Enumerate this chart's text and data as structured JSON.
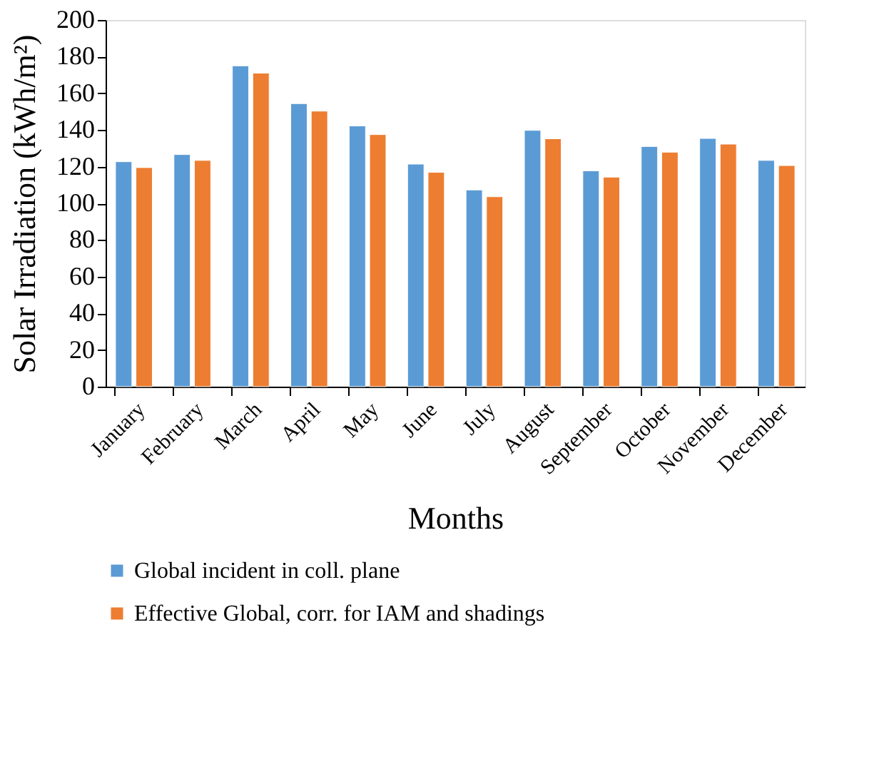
{
  "chart_data": {
    "type": "bar",
    "xlabel": "Months",
    "ylabel": "Solar Irradiation (kWh/m²)",
    "categories": [
      "January",
      "February",
      "March",
      "April",
      "May",
      "June",
      "July",
      "August",
      "September",
      "October",
      "November",
      "December"
    ],
    "series": [
      {
        "name": "Global incident in coll. plane",
        "color": "#5b9bd5",
        "values": [
          122.7,
          126.6,
          175,
          154.4,
          142.2,
          121.4,
          107.3,
          139.8,
          117.7,
          131,
          135.4,
          123.4
        ]
      },
      {
        "name": "Effective Global, corr. for IAM and shadings",
        "color": "#ed7d31",
        "values": [
          119.5,
          123.4,
          171,
          150.3,
          137.5,
          116.9,
          103.6,
          135.2,
          114.3,
          127.9,
          132.3,
          120.6
        ]
      }
    ],
    "ylim": [
      0,
      200
    ],
    "yticks": [
      0,
      20,
      40,
      60,
      80,
      100,
      120,
      140,
      160,
      180,
      200
    ],
    "grid": false,
    "legend": "bottom"
  }
}
